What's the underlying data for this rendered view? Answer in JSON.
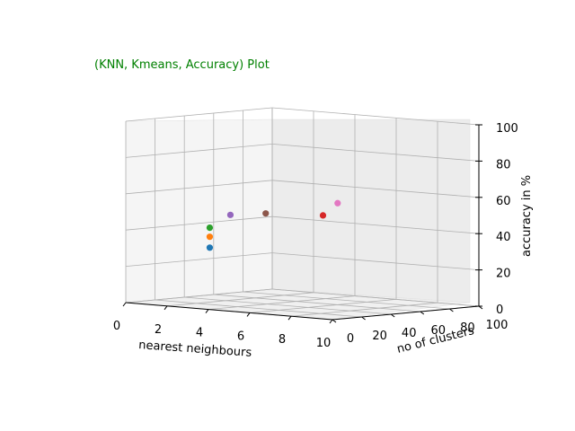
{
  "chart_data": {
    "type": "scatter3d",
    "title": "(KNN, Kmeans, Accuracy) Plot",
    "title_color": "#008000",
    "xlabel": "nearest neighbours",
    "ylabel": "no of clusters",
    "zlabel": "accuracy in %",
    "xlim": [
      0,
      10
    ],
    "ylim": [
      0,
      100
    ],
    "zlim": [
      0,
      100
    ],
    "x_ticks": [
      "0",
      "2",
      "4",
      "6",
      "8",
      "10"
    ],
    "y_ticks": [
      "0",
      "20",
      "40",
      "60",
      "80",
      "100"
    ],
    "z_ticks": [
      "0",
      "20",
      "40",
      "60",
      "80",
      "100"
    ],
    "grid": true,
    "points": [
      {
        "x": 3,
        "y": 15,
        "z": 32,
        "color": "#1f77b4"
      },
      {
        "x": 3,
        "y": 15,
        "z": 38,
        "color": "#ff7f0e"
      },
      {
        "x": 3,
        "y": 15,
        "z": 43,
        "color": "#2ca02c"
      },
      {
        "x": 4,
        "y": 15,
        "z": 51,
        "color": "#9467bd"
      },
      {
        "x": 5,
        "y": 25,
        "z": 52,
        "color": "#8c564b"
      },
      {
        "x": 6,
        "y": 50,
        "z": 50,
        "color": "#d62728"
      },
      {
        "x": 6,
        "y": 60,
        "z": 56,
        "color": "#e377c2"
      }
    ]
  }
}
